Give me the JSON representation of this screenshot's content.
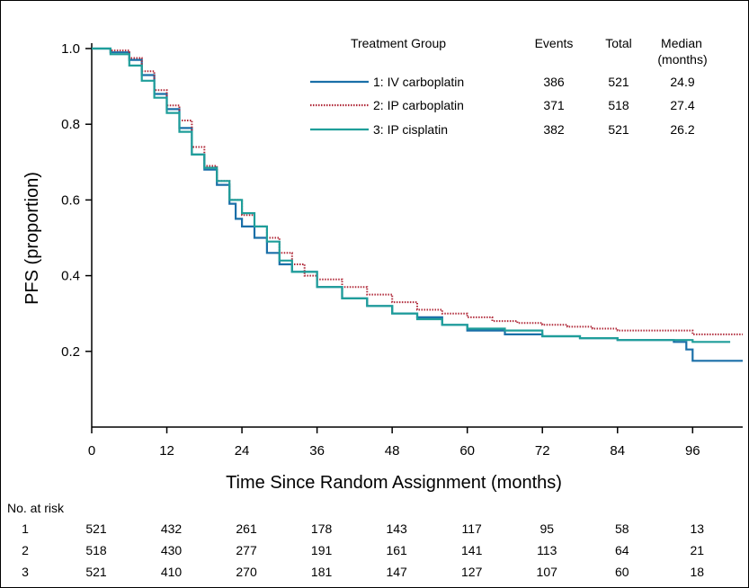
{
  "chart_data": {
    "type": "line",
    "xlabel": "Time Since Random Assignment (months)",
    "ylabel": "PFS (proportion)",
    "xlim": [
      0,
      104
    ],
    "ylim": [
      0.0,
      1.0
    ],
    "x_ticks": [
      "0",
      "12",
      "24",
      "36",
      "48",
      "60",
      "72",
      "84",
      "96"
    ],
    "y_ticks": [
      "1.0",
      "0.8",
      "0.6",
      "0.4",
      "0.2"
    ],
    "grid": false,
    "legend": {
      "placement": "top-right",
      "headers": {
        "group": "Treatment Group",
        "events": "Events",
        "total": "Total",
        "median": "Median",
        "median_unit": "(months)"
      }
    },
    "series": [
      {
        "name": "1: IV carboplatin",
        "events": "386",
        "total": "521",
        "median": "24.9",
        "color": "#1a6fa8",
        "style": "solid",
        "points": [
          [
            0,
            1.0
          ],
          [
            3,
            0.99
          ],
          [
            6,
            0.97
          ],
          [
            8,
            0.93
          ],
          [
            10,
            0.88
          ],
          [
            12,
            0.84
          ],
          [
            14,
            0.79
          ],
          [
            16,
            0.72
          ],
          [
            18,
            0.68
          ],
          [
            20,
            0.64
          ],
          [
            22,
            0.59
          ],
          [
            23,
            0.55
          ],
          [
            24,
            0.53
          ],
          [
            26,
            0.5
          ],
          [
            28,
            0.46
          ],
          [
            30,
            0.43
          ],
          [
            32,
            0.41
          ],
          [
            36,
            0.37
          ],
          [
            40,
            0.34
          ],
          [
            44,
            0.32
          ],
          [
            48,
            0.3
          ],
          [
            52,
            0.29
          ],
          [
            56,
            0.27
          ],
          [
            60,
            0.255
          ],
          [
            66,
            0.245
          ],
          [
            72,
            0.24
          ],
          [
            78,
            0.235
          ],
          [
            84,
            0.23
          ],
          [
            90,
            0.23
          ],
          [
            93,
            0.225
          ],
          [
            95,
            0.205
          ],
          [
            96,
            0.175
          ],
          [
            104,
            0.175
          ]
        ]
      },
      {
        "name": "2: IP carboplatin",
        "events": "371",
        "total": "518",
        "median": "27.4",
        "color": "#b02a3a",
        "style": "dotted",
        "points": [
          [
            0,
            1.0
          ],
          [
            3,
            0.995
          ],
          [
            6,
            0.975
          ],
          [
            8,
            0.94
          ],
          [
            10,
            0.89
          ],
          [
            12,
            0.85
          ],
          [
            14,
            0.81
          ],
          [
            16,
            0.74
          ],
          [
            18,
            0.69
          ],
          [
            20,
            0.65
          ],
          [
            22,
            0.6
          ],
          [
            24,
            0.56
          ],
          [
            26,
            0.53
          ],
          [
            28,
            0.5
          ],
          [
            30,
            0.46
          ],
          [
            32,
            0.43
          ],
          [
            34,
            0.4
          ],
          [
            36,
            0.39
          ],
          [
            40,
            0.37
          ],
          [
            44,
            0.35
          ],
          [
            48,
            0.33
          ],
          [
            52,
            0.31
          ],
          [
            56,
            0.3
          ],
          [
            60,
            0.29
          ],
          [
            64,
            0.28
          ],
          [
            68,
            0.275
          ],
          [
            72,
            0.27
          ],
          [
            76,
            0.265
          ],
          [
            80,
            0.26
          ],
          [
            84,
            0.255
          ],
          [
            90,
            0.255
          ],
          [
            96,
            0.245
          ],
          [
            104,
            0.245
          ]
        ]
      },
      {
        "name": "3: IP cisplatin",
        "events": "382",
        "total": "521",
        "median": "26.2",
        "color": "#1f9e9a",
        "style": "solid",
        "points": [
          [
            0,
            1.0
          ],
          [
            3,
            0.985
          ],
          [
            6,
            0.955
          ],
          [
            8,
            0.915
          ],
          [
            10,
            0.87
          ],
          [
            12,
            0.83
          ],
          [
            14,
            0.78
          ],
          [
            16,
            0.72
          ],
          [
            18,
            0.685
          ],
          [
            20,
            0.65
          ],
          [
            22,
            0.6
          ],
          [
            24,
            0.565
          ],
          [
            26,
            0.53
          ],
          [
            28,
            0.49
          ],
          [
            30,
            0.44
          ],
          [
            32,
            0.41
          ],
          [
            36,
            0.37
          ],
          [
            40,
            0.34
          ],
          [
            44,
            0.32
          ],
          [
            48,
            0.3
          ],
          [
            52,
            0.285
          ],
          [
            56,
            0.27
          ],
          [
            60,
            0.26
          ],
          [
            66,
            0.255
          ],
          [
            72,
            0.24
          ],
          [
            78,
            0.235
          ],
          [
            84,
            0.23
          ],
          [
            90,
            0.23
          ],
          [
            96,
            0.225
          ],
          [
            102,
            0.225
          ]
        ]
      }
    ],
    "risk_table": {
      "title": "No. at risk",
      "rows": [
        {
          "label": "1",
          "values": [
            "521",
            "432",
            "261",
            "178",
            "143",
            "117",
            "95",
            "58",
            "13"
          ]
        },
        {
          "label": "2",
          "values": [
            "518",
            "430",
            "277",
            "191",
            "161",
            "141",
            "113",
            "64",
            "21"
          ]
        },
        {
          "label": "3",
          "values": [
            "521",
            "410",
            "270",
            "181",
            "147",
            "127",
            "107",
            "60",
            "18"
          ]
        }
      ]
    }
  }
}
